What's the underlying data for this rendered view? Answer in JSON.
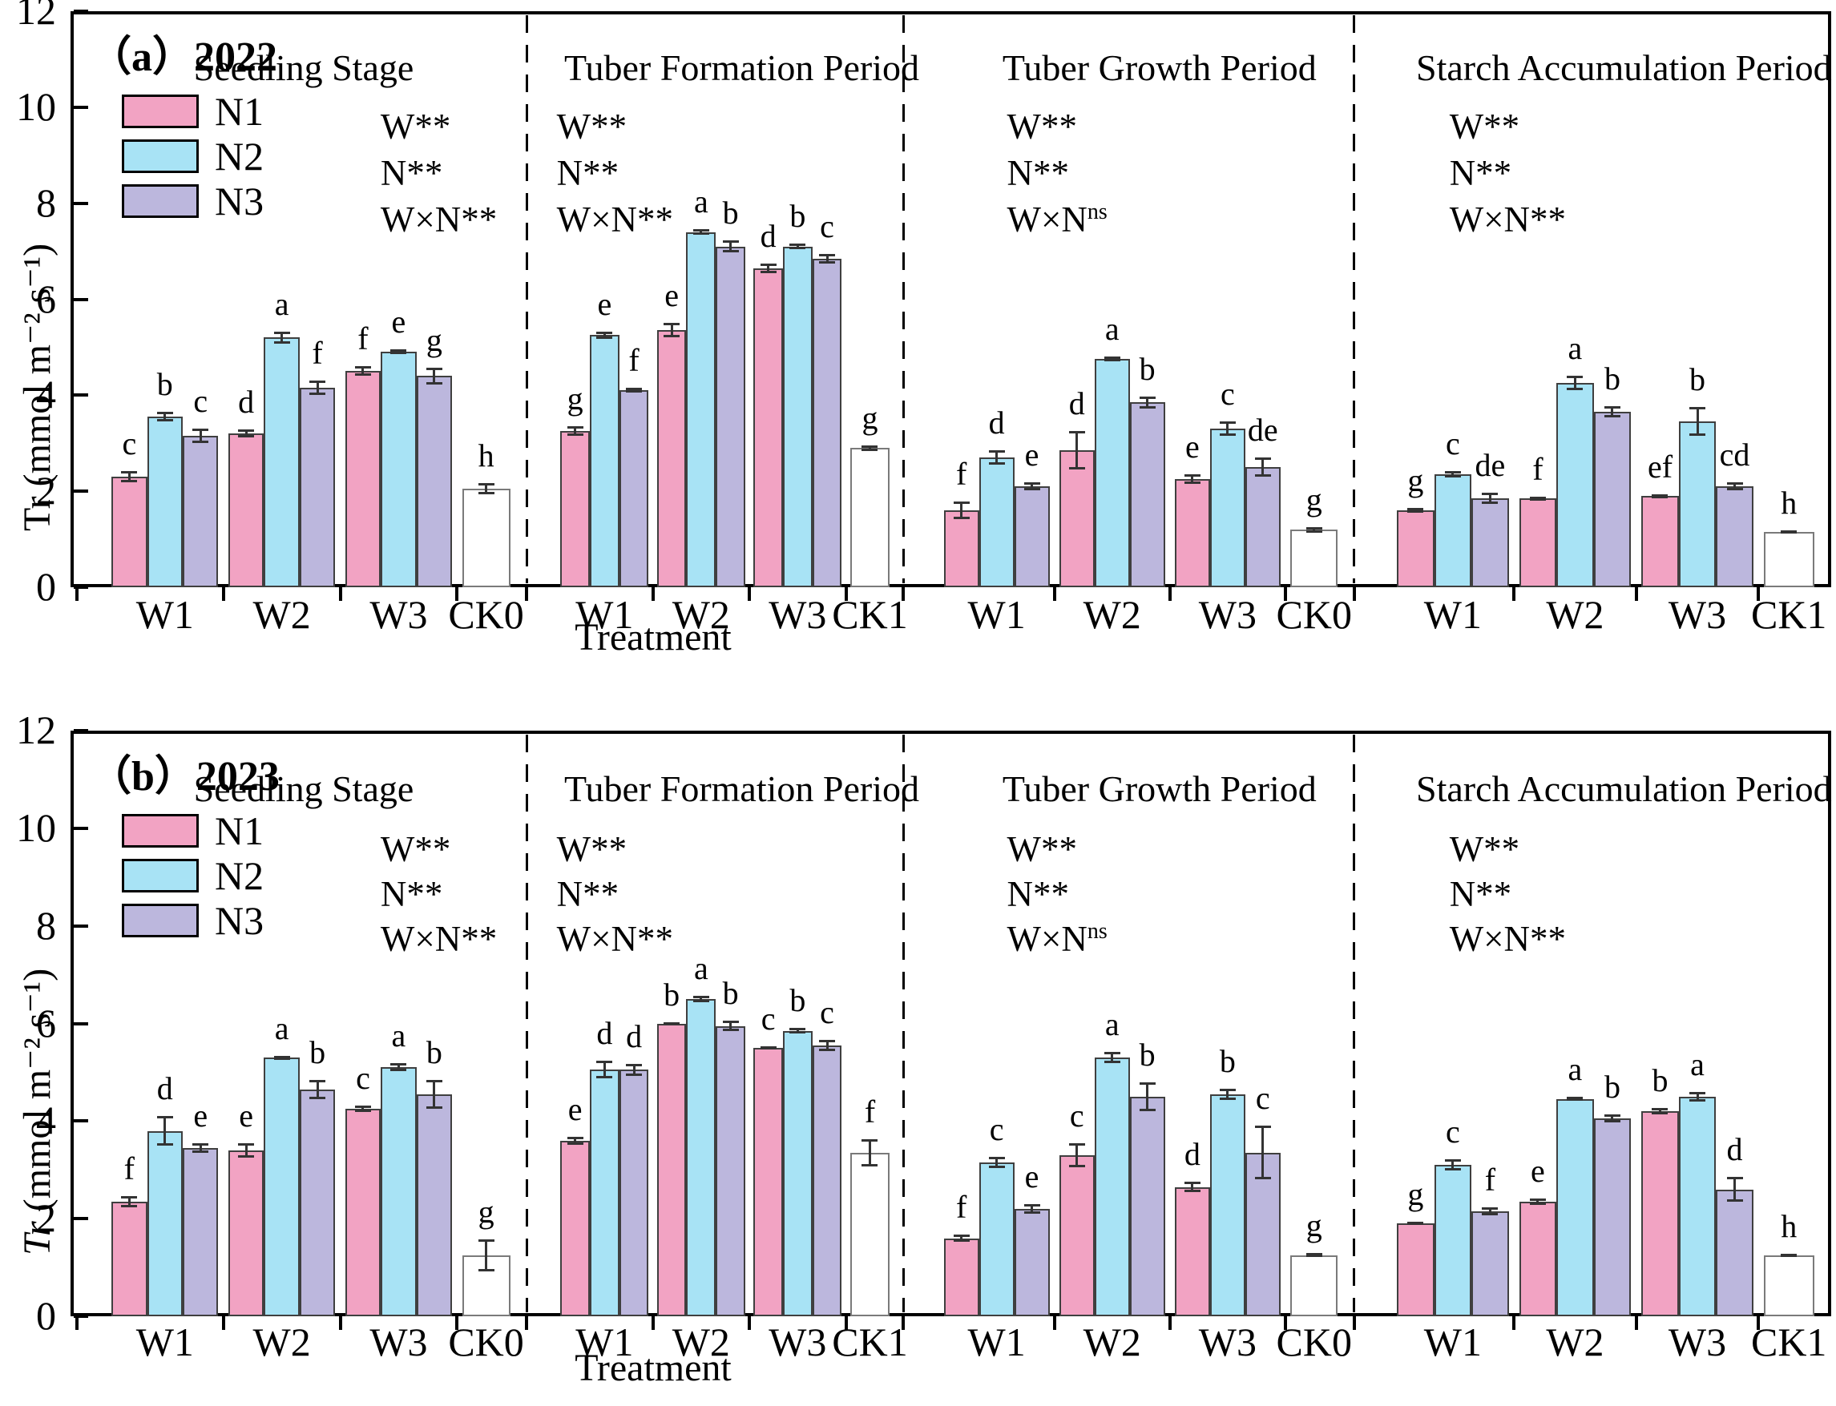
{
  "figure": {
    "xlabel": "Treatment",
    "legend": {
      "items": [
        {
          "label": "N1",
          "color": "#F2A3C3"
        },
        {
          "label": "N2",
          "color": "#A8E3F5"
        },
        {
          "label": "N3",
          "color": "#BCB7DD"
        }
      ]
    },
    "colors": {
      "bar_border": "#3f3f3f",
      "ck_fill": "#FFFFFF",
      "error_bar": "#333333",
      "axis": "#000000"
    }
  },
  "chart_data": [
    {
      "type": "bar",
      "panel_label": "（a）2022",
      "ylabel_var": "Tr",
      "ylabel_var_italic": false,
      "ylabel_rest": " (mmol m⁻² s⁻¹)",
      "xlabel": "Treatment",
      "ylim": [
        0,
        12
      ],
      "yticks": [
        0,
        2,
        4,
        6,
        8,
        10,
        12
      ],
      "series_names": [
        "N1",
        "N2",
        "N3"
      ],
      "sections": [
        {
          "title": "Seedling Stage",
          "stats": [
            {
              "base": "W**"
            },
            {
              "base": "N**"
            },
            {
              "base": "W×N**"
            }
          ],
          "groups": [
            {
              "label": "W1",
              "values": [
                2.3,
                3.55,
                3.15
              ],
              "errors": [
                0.12,
                0.1,
                0.15
              ],
              "letters": [
                "c",
                "b",
                "c"
              ]
            },
            {
              "label": "W2",
              "values": [
                3.2,
                5.2,
                4.15
              ],
              "errors": [
                0.08,
                0.12,
                0.15
              ],
              "letters": [
                "d",
                "a",
                "f"
              ]
            },
            {
              "label": "W3",
              "values": [
                4.5,
                4.9,
                4.4
              ],
              "errors": [
                0.1,
                0.05,
                0.18
              ],
              "letters": [
                "f",
                "e",
                "g"
              ]
            },
            {
              "label": "CK0",
              "ck": true,
              "values": [
                2.05
              ],
              "errors": [
                0.12
              ],
              "letters": [
                "h"
              ]
            }
          ]
        },
        {
          "title": "Tuber Formation Period",
          "stats": [
            {
              "base": "W**"
            },
            {
              "base": "N**"
            },
            {
              "base": "W×N**"
            }
          ],
          "groups": [
            {
              "label": "W1",
              "values": [
                3.25,
                5.25,
                4.1
              ],
              "errors": [
                0.1,
                0.07,
                0.05
              ],
              "letters": [
                "g",
                "e",
                "f"
              ]
            },
            {
              "label": "W2",
              "values": [
                5.35,
                7.4,
                7.1
              ],
              "errors": [
                0.15,
                0.06,
                0.12
              ],
              "letters": [
                "e",
                "a",
                "b"
              ]
            },
            {
              "label": "W3",
              "values": [
                6.65,
                7.1,
                6.85
              ],
              "errors": [
                0.1,
                0.06,
                0.1
              ],
              "letters": [
                "d",
                "b",
                "c"
              ]
            },
            {
              "label": "CK1",
              "ck": true,
              "values": [
                2.9
              ],
              "errors": [
                0.06
              ],
              "letters": [
                "g"
              ]
            }
          ]
        },
        {
          "title": "Tuber Growth Period",
          "stats": [
            {
              "base": "W**"
            },
            {
              "base": "N**"
            },
            {
              "base": "W×N",
              "sup": "ns"
            }
          ],
          "groups": [
            {
              "label": "W1",
              "values": [
                1.6,
                2.7,
                2.1
              ],
              "errors": [
                0.18,
                0.15,
                0.08
              ],
              "letters": [
                "f",
                "d",
                "e"
              ]
            },
            {
              "label": "W2",
              "values": [
                2.85,
                4.75,
                3.85
              ],
              "errors": [
                0.4,
                0.05,
                0.12
              ],
              "letters": [
                "d",
                "a",
                "b"
              ]
            },
            {
              "label": "W3",
              "values": [
                2.25,
                3.3,
                2.5
              ],
              "errors": [
                0.1,
                0.15,
                0.2
              ],
              "letters": [
                "e",
                "c",
                "de"
              ]
            },
            {
              "label": "CK0",
              "ck": true,
              "values": [
                1.2
              ],
              "errors": [
                0.06
              ],
              "letters": [
                "g"
              ]
            }
          ]
        },
        {
          "title": "Starch Accumulation Period",
          "stats": [
            {
              "base": "W**"
            },
            {
              "base": "N**"
            },
            {
              "base": "W×N**"
            }
          ],
          "groups": [
            {
              "label": "W1",
              "values": [
                1.6,
                2.35,
                1.85
              ],
              "errors": [
                0.05,
                0.07,
                0.12
              ],
              "letters": [
                "g",
                "c",
                "de"
              ]
            },
            {
              "label": "W2",
              "values": [
                1.85,
                4.25,
                3.65
              ],
              "errors": [
                0.04,
                0.15,
                0.12
              ],
              "letters": [
                "f",
                "a",
                "b"
              ]
            },
            {
              "label": "W3",
              "values": [
                1.9,
                3.45,
                2.1
              ],
              "errors": [
                0.04,
                0.3,
                0.08
              ],
              "letters": [
                "ef",
                "b",
                "cd"
              ]
            },
            {
              "label": "CK1",
              "ck": true,
              "values": [
                1.15
              ],
              "errors": [
                0.03
              ],
              "letters": [
                "h"
              ]
            }
          ]
        }
      ]
    },
    {
      "type": "bar",
      "panel_label": "（b）2023",
      "ylabel_var": "Tr",
      "ylabel_var_italic": true,
      "ylabel_rest": " (mmol m⁻² s⁻¹)",
      "xlabel": "Treatment",
      "ylim": [
        0,
        12
      ],
      "yticks": [
        0,
        2,
        4,
        6,
        8,
        10,
        12
      ],
      "series_names": [
        "N1",
        "N2",
        "N3"
      ],
      "sections": [
        {
          "title": "Seedling Stage",
          "stats": [
            {
              "base": "W**"
            },
            {
              "base": "N**"
            },
            {
              "base": "W×N**"
            }
          ],
          "groups": [
            {
              "label": "W1",
              "values": [
                2.35,
                3.8,
                3.45
              ],
              "errors": [
                0.12,
                0.3,
                0.1
              ],
              "letters": [
                "f",
                "d",
                "e"
              ]
            },
            {
              "label": "W2",
              "values": [
                3.4,
                5.3,
                4.65
              ],
              "errors": [
                0.15,
                0.04,
                0.2
              ],
              "letters": [
                "e",
                "a",
                "b"
              ]
            },
            {
              "label": "W3",
              "values": [
                4.25,
                5.1,
                4.55
              ],
              "errors": [
                0.06,
                0.08,
                0.3
              ],
              "letters": [
                "c",
                "a",
                "b"
              ]
            },
            {
              "label": "CK0",
              "ck": true,
              "values": [
                1.25
              ],
              "errors": [
                0.33
              ],
              "letters": [
                "g"
              ]
            }
          ]
        },
        {
          "title": "Tuber Formation Period",
          "stats": [
            {
              "base": "W**"
            },
            {
              "base": "N**"
            },
            {
              "base": "W×N**"
            }
          ],
          "groups": [
            {
              "label": "W1",
              "values": [
                3.6,
                5.05,
                5.05
              ],
              "errors": [
                0.08,
                0.18,
                0.12
              ],
              "letters": [
                "e",
                "d",
                "d"
              ]
            },
            {
              "label": "W2",
              "values": [
                6.0,
                6.5,
                5.95
              ],
              "errors": [
                0.03,
                0.07,
                0.1
              ],
              "letters": [
                "b",
                "a",
                "b"
              ]
            },
            {
              "label": "W3",
              "values": [
                5.5,
                5.85,
                5.55
              ],
              "errors": [
                0.04,
                0.06,
                0.12
              ],
              "letters": [
                "c",
                "b",
                "c"
              ]
            },
            {
              "label": "CK1",
              "ck": true,
              "values": [
                3.35
              ],
              "errors": [
                0.28
              ],
              "letters": [
                "f"
              ]
            }
          ]
        },
        {
          "title": "Tuber Growth Period",
          "stats": [
            {
              "base": "W**"
            },
            {
              "base": "N**"
            },
            {
              "base": "W×N",
              "sup": "ns"
            }
          ],
          "groups": [
            {
              "label": "W1",
              "values": [
                1.6,
                3.15,
                2.2
              ],
              "errors": [
                0.08,
                0.12,
                0.1
              ],
              "letters": [
                "f",
                "c",
                "e"
              ]
            },
            {
              "label": "W2",
              "values": [
                3.3,
                5.3,
                4.5
              ],
              "errors": [
                0.25,
                0.12,
                0.3
              ],
              "letters": [
                "c",
                "a",
                "b"
              ]
            },
            {
              "label": "W3",
              "values": [
                2.65,
                4.55,
                3.35
              ],
              "errors": [
                0.1,
                0.12,
                0.55
              ],
              "letters": [
                "d",
                "b",
                "c"
              ]
            },
            {
              "label": "CK0",
              "ck": true,
              "values": [
                1.25
              ],
              "errors": [
                0.04
              ],
              "letters": [
                "g"
              ]
            }
          ]
        },
        {
          "title": "Starch Accumulation Period",
          "stats": [
            {
              "base": "W**"
            },
            {
              "base": "N**"
            },
            {
              "base": "W×N**"
            }
          ],
          "groups": [
            {
              "label": "W1",
              "values": [
                1.9,
                3.1,
                2.15
              ],
              "errors": [
                0.03,
                0.12,
                0.08
              ],
              "letters": [
                "g",
                "c",
                "f"
              ]
            },
            {
              "label": "W2",
              "values": [
                2.35,
                4.45,
                4.05
              ],
              "errors": [
                0.06,
                0.04,
                0.08
              ],
              "letters": [
                "e",
                "a",
                "b"
              ]
            },
            {
              "label": "W3",
              "values": [
                4.2,
                4.5,
                2.6
              ],
              "errors": [
                0.06,
                0.1,
                0.25
              ],
              "letters": [
                "b",
                "a",
                "d"
              ]
            },
            {
              "label": "CK1",
              "ck": true,
              "values": [
                1.25
              ],
              "errors": [
                0.03
              ],
              "letters": [
                "h"
              ]
            }
          ]
        }
      ]
    }
  ]
}
